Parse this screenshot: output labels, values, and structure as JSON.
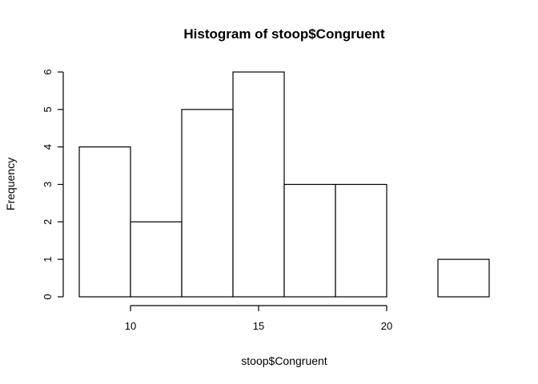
{
  "chart_data": {
    "type": "bar",
    "subtype": "histogram",
    "title": "Histogram of stoop$Congruent",
    "xlabel": "stoop$Congruent",
    "ylabel": "Frequency",
    "bin_edges": [
      8,
      10,
      12,
      14,
      16,
      18,
      20,
      22,
      24
    ],
    "values": [
      4,
      2,
      5,
      6,
      3,
      3,
      0,
      1
    ],
    "xlim": [
      8,
      24
    ],
    "ylim": [
      0,
      6
    ],
    "x_ticks": [
      10,
      15,
      20
    ],
    "y_ticks": [
      0,
      1,
      2,
      3,
      4,
      5,
      6
    ],
    "grid": false,
    "colors": {
      "bar_fill": "#ffffff",
      "bar_stroke": "#000000"
    }
  }
}
